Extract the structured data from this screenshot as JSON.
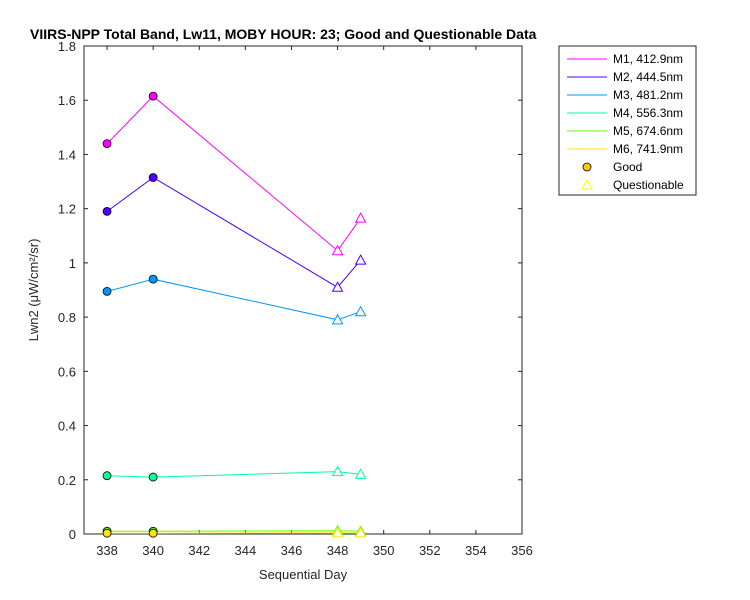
{
  "chart_data": {
    "type": "line",
    "title": "VIIRS-NPP Total Band, Lw11, MOBY HOUR: 23;  Good and Questionable Data",
    "xlabel": "Sequential Day",
    "ylabel": "Lwn2 (μW/cm²/sr)",
    "xlim": [
      337,
      356
    ],
    "ylim": [
      0,
      1.8
    ],
    "xticks": [
      338,
      340,
      342,
      344,
      346,
      348,
      350,
      352,
      354,
      356
    ],
    "yticks": [
      0,
      0.2,
      0.4,
      0.6,
      0.8,
      1,
      1.2,
      1.4,
      1.6,
      1.8
    ],
    "ytick_labels": [
      "0",
      "0.2",
      "0.4",
      "0.6",
      "0.8",
      "1",
      "1.2",
      "1.4",
      "1.6",
      "1.8"
    ],
    "x": [
      338,
      340,
      348,
      349
    ],
    "quality": [
      "good",
      "good",
      "questionable",
      "questionable"
    ],
    "legend_position": "outside-right-top",
    "series": [
      {
        "name": "M1, 412.9nm",
        "color": "#ff00ff",
        "values": [
          1.44,
          1.615,
          1.045,
          1.165
        ]
      },
      {
        "name": "M2, 444.5nm",
        "color": "#4d00ff",
        "values": [
          1.19,
          1.315,
          0.91,
          1.01
        ]
      },
      {
        "name": "M3, 481.2nm",
        "color": "#0096ff",
        "values": [
          0.895,
          0.94,
          0.79,
          0.82
        ]
      },
      {
        "name": "M4, 556.3nm",
        "color": "#00ff99",
        "values": [
          0.215,
          0.21,
          0.23,
          0.22
        ]
      },
      {
        "name": "M5, 674.6nm",
        "color": "#66ff00",
        "values": [
          0.01,
          0.01,
          0.012,
          0.01
        ]
      },
      {
        "name": "M6, 741.9nm",
        "color": "#ffe600",
        "values": [
          0.003,
          0.003,
          0.004,
          0.004
        ]
      }
    ],
    "marker_legend": [
      {
        "label": "Good",
        "marker": "circle",
        "color": "#ffcc00"
      },
      {
        "label": "Questionable",
        "marker": "triangle",
        "color": "#ffff00"
      }
    ]
  }
}
